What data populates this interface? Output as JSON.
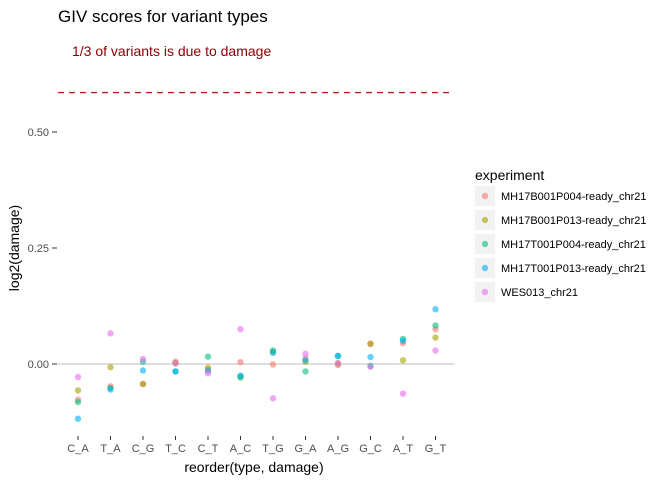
{
  "chart_data": {
    "type": "scatter",
    "title": "GIV scores for variant types",
    "annotation": "1/3 of variants is due to damage",
    "xlabel": "reorder(type, damage)",
    "ylabel": "log2(damage)",
    "categories": [
      "C_A",
      "T_A",
      "C_G",
      "T_C",
      "C_T",
      "A_C",
      "T_G",
      "G_A",
      "A_G",
      "G_C",
      "A_T",
      "G_T"
    ],
    "y_ticks": [
      "0.00",
      "0.25",
      "0.50"
    ],
    "y_tick_values": [
      0,
      0.25,
      0.5
    ],
    "ylim": [
      -0.14,
      0.64
    ],
    "reference_lines": [
      {
        "y": 0.585,
        "style": "dashed",
        "color": "#b22222"
      },
      {
        "y": 0,
        "style": "solid",
        "color": "#bdbdbd"
      }
    ],
    "legend_title": "experiment",
    "legend_position": "right",
    "series": [
      {
        "name": "MH17B001P004-ready_chr21",
        "color": "#F8766D",
        "values": [
          -0.077,
          -0.048,
          -0.043,
          0.005,
          -0.012,
          0.004,
          -0.001,
          0.012,
          -0.002,
          0.043,
          0.045,
          0.075
        ]
      },
      {
        "name": "MH17B001P013-ready_chr21",
        "color": "#A3A500",
        "values": [
          -0.057,
          -0.007,
          -0.043,
          0.002,
          -0.008,
          -0.027,
          0.026,
          0.005,
          0.001,
          0.044,
          0.008,
          0.057
        ]
      },
      {
        "name": "MH17T001P004-ready_chr21",
        "color": "#00BF7D",
        "values": [
          -0.082,
          -0.052,
          0.005,
          -0.016,
          0.016,
          -0.029,
          0.029,
          -0.016,
          0.017,
          -0.004,
          0.054,
          0.083
        ]
      },
      {
        "name": "MH17T001P013-ready_chr21",
        "color": "#00B0F6",
        "values": [
          -0.118,
          -0.055,
          -0.014,
          -0.016,
          -0.015,
          -0.025,
          0.024,
          0.008,
          0.018,
          0.015,
          0.05,
          0.118
        ]
      },
      {
        "name": "WES013_chr21",
        "color": "#E76BF3",
        "values": [
          -0.028,
          0.066,
          0.011,
          0.001,
          -0.02,
          0.075,
          -0.074,
          0.022,
          0.002,
          -0.006,
          -0.064,
          0.029
        ]
      }
    ]
  }
}
